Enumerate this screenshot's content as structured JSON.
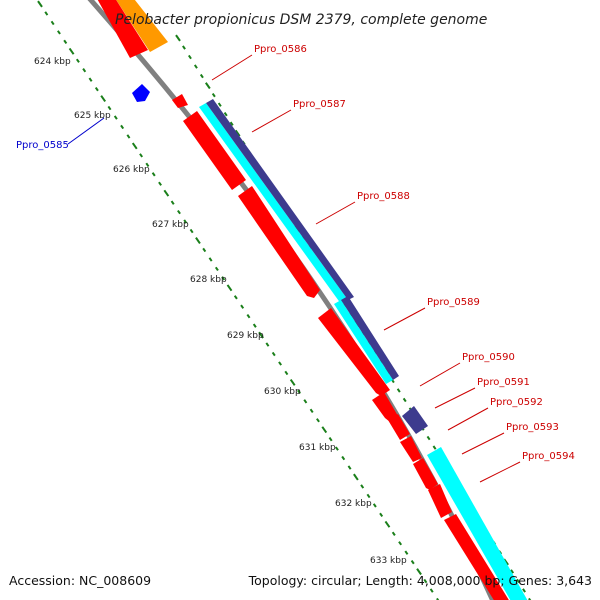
{
  "title": "Pelobacter propionicus DSM 2379, complete genome",
  "footer": {
    "accession": "Accession: NC_008609",
    "topology": "Topology: circular; Length: 4,008,000 bp; Genes: 3,643"
  },
  "ticks": [
    "624 kbp",
    "625 kbp",
    "626 kbp",
    "627 kbp",
    "628 kbp",
    "629 kbp",
    "630 kbp",
    "631 kbp",
    "632 kbp",
    "633 kbp"
  ],
  "gene_labels": [
    {
      "name": "Ppro_0585",
      "color": "#0000cc"
    },
    {
      "name": "Ppro_0586",
      "color": "#cc0000"
    },
    {
      "name": "Ppro_0587",
      "color": "#cc0000"
    },
    {
      "name": "Ppro_0588",
      "color": "#cc0000"
    },
    {
      "name": "Ppro_0589",
      "color": "#cc0000"
    },
    {
      "name": "Ppro_0590",
      "color": "#cc0000"
    },
    {
      "name": "Ppro_0591",
      "color": "#cc0000"
    },
    {
      "name": "Ppro_0592",
      "color": "#cc0000"
    },
    {
      "name": "Ppro_0593",
      "color": "#cc0000"
    },
    {
      "name": "Ppro_0594",
      "color": "#cc0000"
    }
  ],
  "colors": {
    "cds": "#ff0000",
    "cds_blue": "#0000ff",
    "misc": "#ff9900",
    "gene_cyan": "#00ffff",
    "gene_navy": "#3d3b8e",
    "backbone": "#808080",
    "tick_marks": "#1a7f1a"
  }
}
